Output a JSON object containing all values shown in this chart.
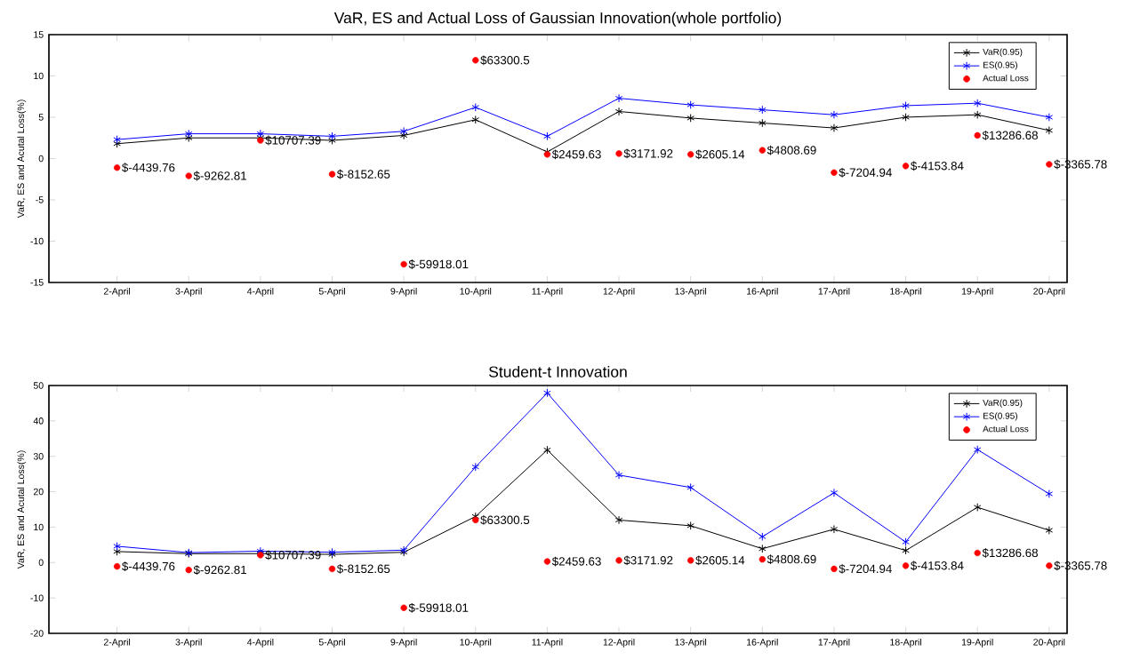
{
  "chart_data": [
    {
      "type": "line",
      "title": "VaR, ES and Actual Loss of Gaussian Innovation(whole portfolio)",
      "ylabel": "VaR, ES and Acutal Loss(%)",
      "categories": [
        "2-April",
        "3-April",
        "4-April",
        "5-April",
        "9-April",
        "10-April",
        "11-April",
        "12-April",
        "13-April",
        "16-April",
        "17-April",
        "18-April",
        "19-April",
        "20-April"
      ],
      "ylim": [
        -15,
        15
      ],
      "yticks": [
        -15,
        -10,
        -5,
        0,
        5,
        10,
        15
      ],
      "grid": false,
      "legend": "top right",
      "line_style": "solid",
      "series": [
        {
          "name": "VaR(0.95)",
          "color": "#000000",
          "marker": "cross",
          "values": [
            1.8,
            2.5,
            2.5,
            2.2,
            2.8,
            4.7,
            0.8,
            5.7,
            4.9,
            4.3,
            3.7,
            5.0,
            5.3,
            3.4
          ]
        },
        {
          "name": "ES(0.95)",
          "color": "#0000ff",
          "marker": "cross",
          "values": [
            2.3,
            3.0,
            3.0,
            2.7,
            3.3,
            6.2,
            2.7,
            7.3,
            6.5,
            5.9,
            5.3,
            6.4,
            6.7,
            5.0
          ]
        },
        {
          "name": "Actual Loss",
          "type": "scatter",
          "color": "#ff0000",
          "marker": "circle",
          "values": [
            -1.1,
            -2.1,
            2.2,
            -1.9,
            -12.8,
            11.9,
            0.5,
            0.6,
            0.5,
            1.0,
            -1.7,
            -0.9,
            2.8,
            -0.7
          ]
        }
      ],
      "annotations": [
        {
          "text": "$-4439.76",
          "x": "2-April",
          "y": -1.1
        },
        {
          "text": "$-9262.81",
          "x": "3-April",
          "y": -2.1
        },
        {
          "text": "$10707.39",
          "x": "4-April",
          "y": 2.2
        },
        {
          "text": "$-8152.65",
          "x": "5-April",
          "y": -1.9
        },
        {
          "text": "$-59918.01",
          "x": "9-April",
          "y": -12.8
        },
        {
          "text": "$63300.5",
          "x": "10-April",
          "y": 11.9
        },
        {
          "text": "$2459.63",
          "x": "11-April",
          "y": 0.5
        },
        {
          "text": "$3171.92",
          "x": "12-April",
          "y": 0.6
        },
        {
          "text": "$2605.14",
          "x": "13-April",
          "y": 0.5
        },
        {
          "text": "$4808.69",
          "x": "16-April",
          "y": 1.0
        },
        {
          "text": "$-7204.94",
          "x": "17-April",
          "y": -1.7
        },
        {
          "text": "$-4153.84",
          "x": "18-April",
          "y": -0.9
        },
        {
          "text": "$13286.68",
          "x": "19-April",
          "y": 2.8
        },
        {
          "text": "$-3365.78",
          "x": "20-April",
          "y": -0.7
        }
      ]
    },
    {
      "type": "line",
      "title": "Student-t Innovation",
      "ylabel": "VaR, ES and Acutal Loss(%)",
      "categories": [
        "2-April",
        "3-April",
        "4-April",
        "5-April",
        "9-April",
        "10-April",
        "11-April",
        "12-April",
        "13-April",
        "16-April",
        "17-April",
        "18-April",
        "19-April",
        "20-April"
      ],
      "ylim": [
        -20,
        50
      ],
      "yticks": [
        -20,
        -10,
        0,
        10,
        20,
        30,
        40,
        50
      ],
      "grid": false,
      "legend": "top right",
      "line_style": "solid",
      "series": [
        {
          "name": "VaR(0.95)",
          "color": "#000000",
          "marker": "cross",
          "values": [
            3.1,
            2.5,
            2.5,
            2.3,
            2.9,
            13.0,
            31.8,
            12.0,
            10.4,
            3.9,
            9.4,
            3.4,
            15.6,
            9.1
          ]
        },
        {
          "name": "ES(0.95)",
          "color": "#0000ff",
          "marker": "cross",
          "values": [
            4.6,
            2.8,
            3.2,
            2.9,
            3.5,
            27.0,
            47.9,
            24.7,
            21.2,
            7.3,
            19.7,
            5.8,
            31.9,
            19.4
          ]
        },
        {
          "name": "Actual Loss",
          "type": "scatter",
          "color": "#ff0000",
          "marker": "circle",
          "values": [
            -1.1,
            -2.1,
            2.1,
            -1.8,
            -12.8,
            12.0,
            0.3,
            0.6,
            0.6,
            0.9,
            -1.8,
            -0.9,
            2.7,
            -0.9
          ]
        }
      ],
      "annotations": [
        {
          "text": "$-4439.76",
          "x": "2-April",
          "y": -1.1
        },
        {
          "text": "$-9262.81",
          "x": "3-April",
          "y": -2.1
        },
        {
          "text": "$10707.39",
          "x": "4-April",
          "y": 2.1
        },
        {
          "text": "$-8152.65",
          "x": "5-April",
          "y": -1.8
        },
        {
          "text": "$-59918.01",
          "x": "9-April",
          "y": -12.8
        },
        {
          "text": "$63300.5",
          "x": "10-April",
          "y": 12.0
        },
        {
          "text": "$2459.63",
          "x": "11-April",
          "y": 0.3
        },
        {
          "text": "$3171.92",
          "x": "12-April",
          "y": 0.6
        },
        {
          "text": "$2605.14",
          "x": "13-April",
          "y": 0.6
        },
        {
          "text": "$4808.69",
          "x": "16-April",
          "y": 0.9
        },
        {
          "text": "$-7204.94",
          "x": "17-April",
          "y": -1.8
        },
        {
          "text": "$-4153.84",
          "x": "18-April",
          "y": -0.9
        },
        {
          "text": "$13286.68",
          "x": "19-April",
          "y": 2.7
        },
        {
          "text": "$-3365.78",
          "x": "20-April",
          "y": -0.9
        }
      ]
    }
  ]
}
